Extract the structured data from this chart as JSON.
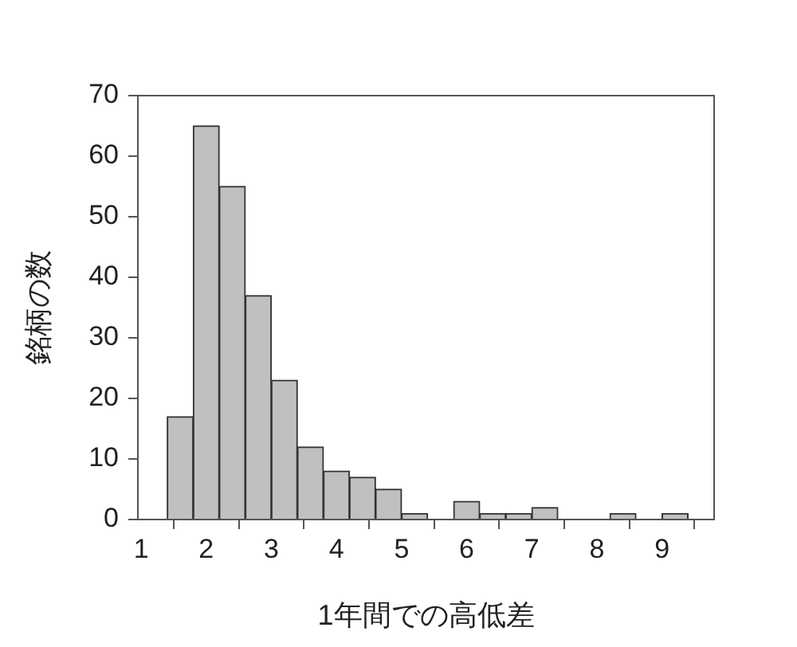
{
  "chart_data": {
    "type": "histogram",
    "xlabel": "1年間での高低差",
    "ylabel": "銘柄の数",
    "bins": [
      1.4,
      1.8,
      2.2,
      2.6,
      3.0,
      3.4,
      3.8,
      4.2,
      4.6,
      5.0,
      5.4,
      5.8,
      6.2,
      6.6,
      7.0,
      7.4,
      7.8,
      8.2,
      8.6,
      9.0,
      9.4
    ],
    "values": [
      17,
      65,
      55,
      37,
      23,
      12,
      8,
      7,
      5,
      1,
      0,
      3,
      1,
      1,
      2,
      0,
      0,
      1,
      0,
      1
    ],
    "color": "#c0c0c0",
    "xlim": [
      0.95,
      9.8
    ],
    "xticks": [
      1,
      2,
      3,
      4,
      5,
      6,
      7,
      8,
      9
    ],
    "ylim": [
      0,
      70
    ],
    "yticks": [
      0,
      10,
      20,
      30,
      40,
      50,
      60,
      70
    ],
    "grid": false,
    "legend": false
  }
}
